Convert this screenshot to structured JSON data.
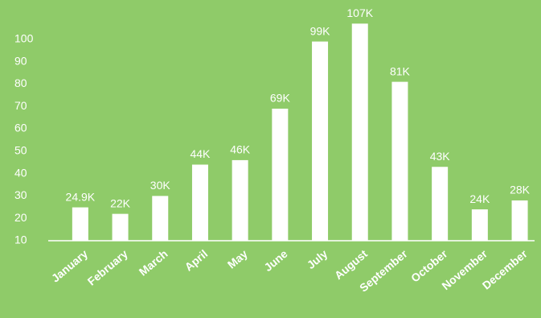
{
  "chart_data": {
    "type": "bar",
    "categories": [
      "January",
      "February",
      "March",
      "April",
      "May",
      "June",
      "July",
      "August",
      "September",
      "October",
      "November",
      "December"
    ],
    "values": [
      24.9,
      22,
      30,
      44,
      46,
      69,
      99,
      107,
      81,
      43,
      24,
      28
    ],
    "value_labels": [
      "24.9K",
      "22K",
      "30K",
      "44K",
      "46K",
      "69K",
      "99K",
      "107K",
      "81K",
      "43K",
      "24K",
      "28K"
    ],
    "color": "#ffffff",
    "ylim": [
      10,
      110
    ],
    "yticks": [
      10,
      20,
      30,
      40,
      50,
      60,
      70,
      80,
      90,
      100
    ],
    "grid": false
  }
}
